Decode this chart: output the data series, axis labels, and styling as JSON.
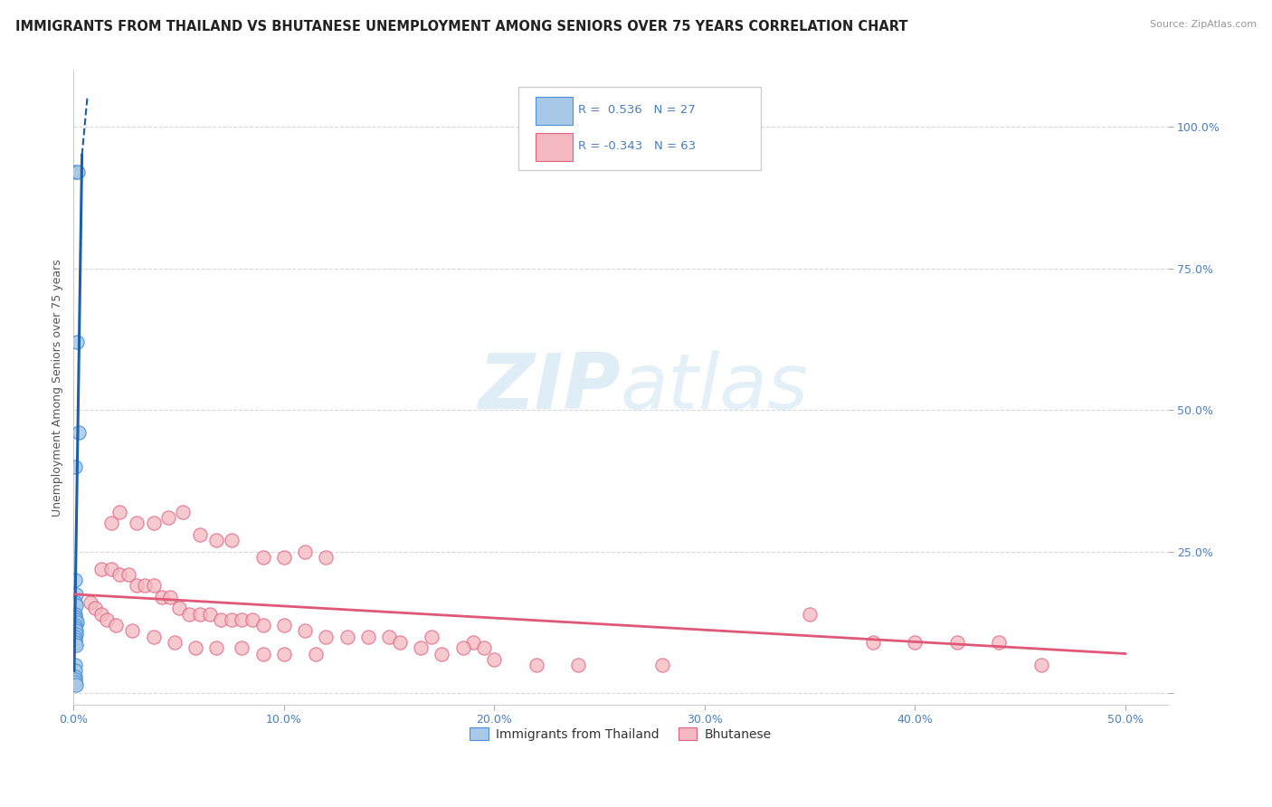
{
  "title": "IMMIGRANTS FROM THAILAND VS BHUTANESE UNEMPLOYMENT AMONG SENIORS OVER 75 YEARS CORRELATION CHART",
  "source": "Source: ZipAtlas.com",
  "ylabel": "Unemployment Among Seniors over 75 years",
  "legend_label1": "Immigrants from Thailand",
  "legend_label2": "Bhutanese",
  "watermark_zip": "ZIP",
  "watermark_atlas": "atlas",
  "blue_color": "#a8c8e8",
  "blue_edge": "#4a90d9",
  "blue_line_color": "#1a5fa8",
  "pink_color": "#f4b8c0",
  "pink_edge": "#e06080",
  "pink_line_color": "#e05878",
  "blue_scatter": [
    [
      0.0008,
      0.92
    ],
    [
      0.002,
      0.92
    ],
    [
      0.0015,
      0.62
    ],
    [
      0.0025,
      0.46
    ],
    [
      0.0008,
      0.4
    ],
    [
      0.0006,
      0.2
    ],
    [
      0.001,
      0.175
    ],
    [
      0.0006,
      0.16
    ],
    [
      0.0012,
      0.155
    ],
    [
      0.0008,
      0.14
    ],
    [
      0.0006,
      0.135
    ],
    [
      0.001,
      0.13
    ],
    [
      0.0015,
      0.125
    ],
    [
      0.0006,
      0.12
    ],
    [
      0.0006,
      0.115
    ],
    [
      0.001,
      0.11
    ],
    [
      0.0012,
      0.105
    ],
    [
      0.0006,
      0.1
    ],
    [
      0.0008,
      0.095
    ],
    [
      0.0006,
      0.09
    ],
    [
      0.001,
      0.085
    ],
    [
      0.0006,
      0.05
    ],
    [
      0.0008,
      0.04
    ],
    [
      0.0006,
      0.03
    ],
    [
      0.0006,
      0.025
    ],
    [
      0.0008,
      0.02
    ],
    [
      0.001,
      0.015
    ]
  ],
  "pink_scatter": [
    [
      0.018,
      0.3
    ],
    [
      0.022,
      0.32
    ],
    [
      0.03,
      0.3
    ],
    [
      0.038,
      0.3
    ],
    [
      0.045,
      0.31
    ],
    [
      0.052,
      0.32
    ],
    [
      0.06,
      0.28
    ],
    [
      0.068,
      0.27
    ],
    [
      0.075,
      0.27
    ],
    [
      0.09,
      0.24
    ],
    [
      0.1,
      0.24
    ],
    [
      0.11,
      0.25
    ],
    [
      0.12,
      0.24
    ],
    [
      0.15,
      0.1
    ],
    [
      0.17,
      0.1
    ],
    [
      0.19,
      0.09
    ],
    [
      0.2,
      0.06
    ],
    [
      0.22,
      0.05
    ],
    [
      0.24,
      0.05
    ],
    [
      0.28,
      0.05
    ],
    [
      0.013,
      0.22
    ],
    [
      0.018,
      0.22
    ],
    [
      0.022,
      0.21
    ],
    [
      0.026,
      0.21
    ],
    [
      0.03,
      0.19
    ],
    [
      0.034,
      0.19
    ],
    [
      0.038,
      0.19
    ],
    [
      0.042,
      0.17
    ],
    [
      0.046,
      0.17
    ],
    [
      0.05,
      0.15
    ],
    [
      0.055,
      0.14
    ],
    [
      0.06,
      0.14
    ],
    [
      0.065,
      0.14
    ],
    [
      0.07,
      0.13
    ],
    [
      0.075,
      0.13
    ],
    [
      0.08,
      0.13
    ],
    [
      0.085,
      0.13
    ],
    [
      0.09,
      0.12
    ],
    [
      0.1,
      0.12
    ],
    [
      0.11,
      0.11
    ],
    [
      0.12,
      0.1
    ],
    [
      0.13,
      0.1
    ],
    [
      0.14,
      0.1
    ],
    [
      0.155,
      0.09
    ],
    [
      0.165,
      0.08
    ],
    [
      0.175,
      0.07
    ],
    [
      0.185,
      0.08
    ],
    [
      0.195,
      0.08
    ],
    [
      0.008,
      0.16
    ],
    [
      0.01,
      0.15
    ],
    [
      0.013,
      0.14
    ],
    [
      0.016,
      0.13
    ],
    [
      0.02,
      0.12
    ],
    [
      0.028,
      0.11
    ],
    [
      0.038,
      0.1
    ],
    [
      0.048,
      0.09
    ],
    [
      0.058,
      0.08
    ],
    [
      0.068,
      0.08
    ],
    [
      0.08,
      0.08
    ],
    [
      0.09,
      0.07
    ],
    [
      0.1,
      0.07
    ],
    [
      0.115,
      0.07
    ],
    [
      0.35,
      0.14
    ],
    [
      0.38,
      0.09
    ],
    [
      0.4,
      0.09
    ],
    [
      0.42,
      0.09
    ],
    [
      0.44,
      0.09
    ],
    [
      0.46,
      0.05
    ]
  ],
  "blue_line": [
    [
      0.0003,
      0.04
    ],
    [
      0.004,
      0.95
    ]
  ],
  "blue_line_dashed": [
    [
      0.004,
      0.95
    ],
    [
      0.0065,
      1.05
    ]
  ],
  "pink_line": [
    [
      0.0,
      0.175
    ],
    [
      0.5,
      0.07
    ]
  ],
  "xlim": [
    0.0,
    0.52
  ],
  "ylim": [
    -0.02,
    1.1
  ],
  "x_ticks": [
    0.0,
    0.1,
    0.2,
    0.3,
    0.4,
    0.5
  ],
  "x_tick_labels": [
    "0.0%",
    "10.0%",
    "20.0%",
    "30.0%",
    "40.0%",
    "50.0%"
  ],
  "y_ticks": [
    0.0,
    0.25,
    0.5,
    0.75,
    1.0
  ],
  "y_tick_labels": [
    "",
    "25.0%",
    "50.0%",
    "75.0%",
    "100.0%"
  ],
  "background_color": "#ffffff",
  "grid_color": "#d8d8d8",
  "tick_color": "#4a7fc0",
  "title_fontsize": 10.5,
  "source_fontsize": 8,
  "ylabel_fontsize": 9,
  "tick_fontsize": 9,
  "legend_fontsize": 9.5
}
